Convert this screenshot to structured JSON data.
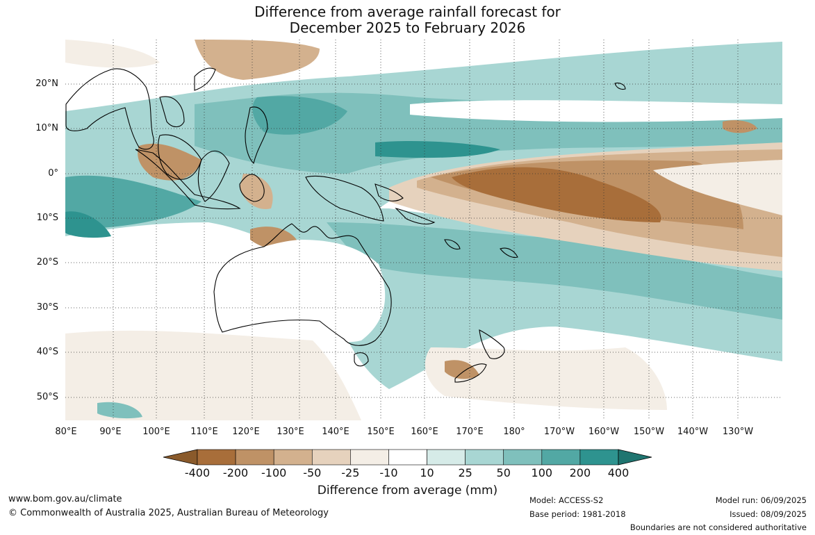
{
  "title": {
    "line1": "Difference from average rainfall forecast for",
    "line2": "December 2025 to February 2026"
  },
  "map": {
    "lat_labels": [
      "20°N",
      "10°N",
      "0°",
      "10°S",
      "20°S",
      "30°S",
      "40°S",
      "50°S"
    ],
    "lon_labels": [
      "80°E",
      "90°E",
      "100°E",
      "110°E",
      "120°E",
      "130°E",
      "140°E",
      "150°E",
      "160°E",
      "170°E",
      "180°",
      "170°W",
      "160°W",
      "150°W",
      "140°W",
      "130°W"
    ],
    "lon_range": [
      80,
      229
    ],
    "lat_range": [
      -55,
      30
    ]
  },
  "legend": {
    "title": "Difference from average (mm)",
    "tick_labels": [
      "-400",
      "-200",
      "-100",
      "-50",
      "-25",
      "-10",
      "10",
      "25",
      "50",
      "100",
      "200",
      "400"
    ],
    "colors": [
      "#8a5a2b",
      "#a86e3a",
      "#bf9266",
      "#d3b18e",
      "#e6d2bd",
      "#f4eee6",
      "#ffffff",
      "#d6ebe8",
      "#a8d6d3",
      "#7fc0bc",
      "#52a8a4",
      "#2e938f",
      "#1f7570"
    ]
  },
  "footer": {
    "url": "www.bom.gov.au/climate",
    "copyright": "© Commonwealth of Australia 2025, Australian Bureau of Meteorology",
    "model": "Model: ACCESS-S2",
    "base_period": "Base period: 1981-2018",
    "model_run": "Model run: 06/09/2025",
    "issued": "Issued: 08/09/2025",
    "disclaimer": "Boundaries are not considered authoritative"
  }
}
